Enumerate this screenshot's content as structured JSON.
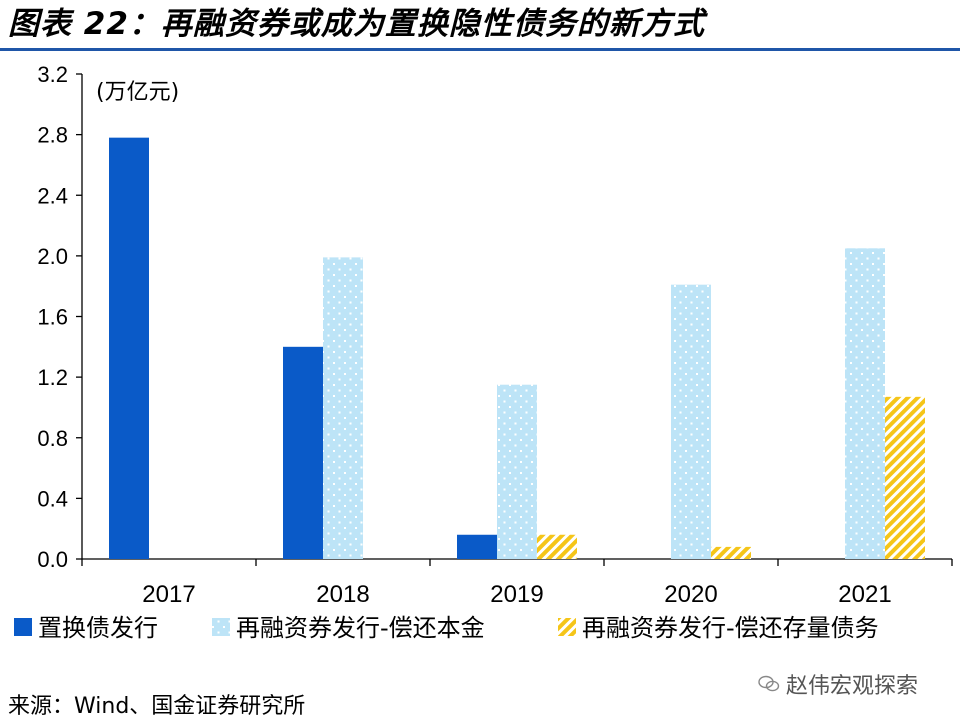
{
  "title": "图表 22：再融资券或成为置换隐性债务的新方式",
  "source": "来源：Wind、国金证券研究所",
  "watermark": "赵伟宏观探索",
  "colors": {
    "title_rule": "#1f56a8",
    "series1": "#0a5ac8",
    "series2": "#bde4f7",
    "series3_fill": "#f5c518",
    "series3_stripe": "#ffffff",
    "dots": "#ffffff"
  },
  "chart_data": {
    "type": "bar",
    "unit_label": "(万亿元)",
    "categories": [
      "2017",
      "2018",
      "2019",
      "2020",
      "2021"
    ],
    "ylim": [
      0,
      3.2
    ],
    "yticks": [
      "0.0",
      "0.4",
      "0.8",
      "1.2",
      "1.6",
      "2.0",
      "2.4",
      "2.8",
      "3.2"
    ],
    "series": [
      {
        "name": "置换债发行",
        "values": [
          2.78,
          1.4,
          0.16,
          null,
          null
        ],
        "pattern": "solid"
      },
      {
        "name": "再融资券发行-偿还本金",
        "values": [
          null,
          1.99,
          1.15,
          1.81,
          2.05
        ],
        "pattern": "dots"
      },
      {
        "name": "再融资券发行-偿还存量债务",
        "values": [
          null,
          null,
          0.16,
          0.08,
          1.07
        ],
        "pattern": "stripes"
      }
    ],
    "legend_position": "bottom"
  }
}
